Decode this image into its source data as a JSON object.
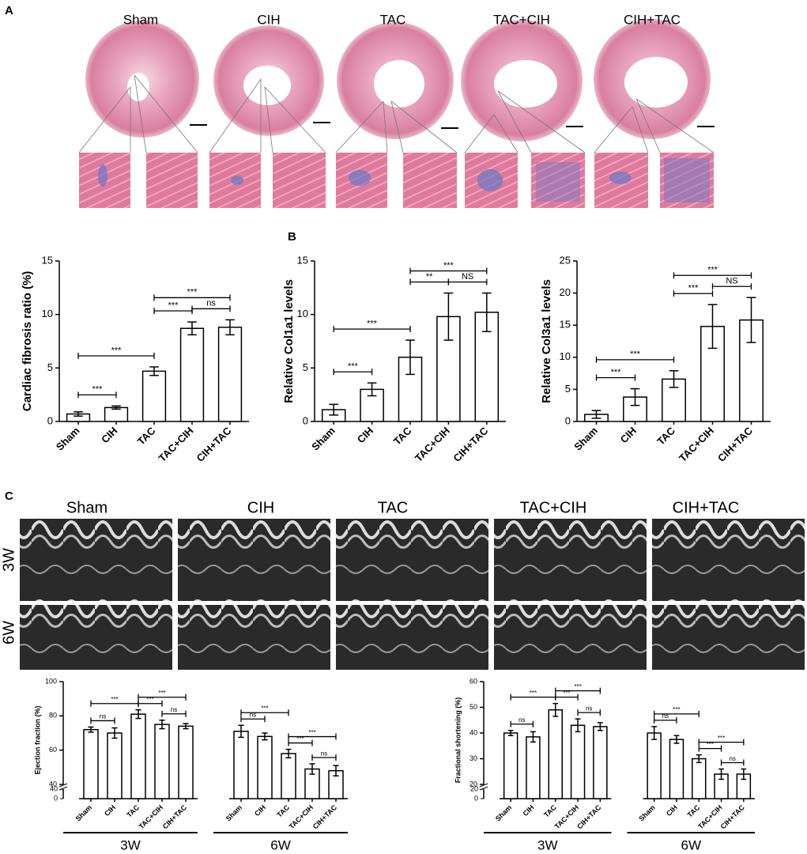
{
  "panel_a": {
    "label": "A",
    "groups": [
      "Sham",
      "CIH",
      "TAC",
      "TAC+CIH",
      "CIH+TAC"
    ]
  },
  "panel_b": {
    "label": "B"
  },
  "panel_c": {
    "label": "C",
    "groups": [
      "Sham",
      "CIH",
      "TAC",
      "TAC+CIH",
      "CIH+TAC"
    ],
    "rows": [
      "3W",
      "6W"
    ]
  },
  "chart_data": [
    {
      "type": "bar",
      "y_label": "Cardiac fibrosis ratio (%)",
      "categories": [
        "Sham",
        "CIH",
        "TAC",
        "TAC+CIH",
        "CIH+TAC"
      ],
      "values": [
        0.7,
        1.3,
        4.7,
        8.7,
        8.8
      ],
      "errors": [
        0.2,
        0.15,
        0.4,
        0.6,
        0.7
      ],
      "ylim": [
        0,
        15
      ],
      "yticks": [
        0,
        5,
        10,
        15
      ],
      "comparisons": [
        {
          "from": "Sham",
          "to": "CIH",
          "label": "***"
        },
        {
          "from": "Sham",
          "to": "TAC",
          "label": "***"
        },
        {
          "from": "TAC",
          "to": "TAC+CIH",
          "label": "***"
        },
        {
          "from": "TAC+CIH",
          "to": "CIH+TAC",
          "label": "ns"
        },
        {
          "from": "TAC",
          "to": "CIH+TAC",
          "label": "***"
        }
      ]
    },
    {
      "type": "bar",
      "y_label": "Relative Col1a1 levels",
      "categories": [
        "Sham",
        "CIH",
        "TAC",
        "TAC+CIH",
        "CIH+TAC"
      ],
      "values": [
        1.1,
        3.0,
        6.0,
        9.8,
        10.2
      ],
      "errors": [
        0.5,
        0.6,
        1.6,
        2.2,
        1.8
      ],
      "ylim": [
        0,
        15
      ],
      "yticks": [
        0,
        5,
        10,
        15
      ],
      "comparisons": [
        {
          "from": "Sham",
          "to": "CIH",
          "label": "***"
        },
        {
          "from": "Sham",
          "to": "TAC",
          "label": "***"
        },
        {
          "from": "TAC",
          "to": "TAC+CIH",
          "label": "**"
        },
        {
          "from": "TAC+CIH",
          "to": "CIH+TAC",
          "label": "NS"
        },
        {
          "from": "TAC",
          "to": "CIH+TAC",
          "label": "***"
        }
      ]
    },
    {
      "type": "bar",
      "y_label": "Relative Col3a1 levels",
      "categories": [
        "Sham",
        "CIH",
        "TAC",
        "TAC+CIH",
        "CIH+TAC"
      ],
      "values": [
        1.1,
        3.8,
        6.6,
        14.8,
        15.8
      ],
      "errors": [
        0.6,
        1.3,
        1.3,
        3.4,
        3.5
      ],
      "ylim": [
        0,
        25
      ],
      "yticks": [
        0,
        5,
        10,
        15,
        20,
        25
      ],
      "comparisons": [
        {
          "from": "Sham",
          "to": "CIH",
          "label": "***"
        },
        {
          "from": "Sham",
          "to": "TAC",
          "label": "***"
        },
        {
          "from": "TAC",
          "to": "TAC+CIH",
          "label": "***"
        },
        {
          "from": "TAC+CIH",
          "to": "CIH+TAC",
          "label": "NS"
        },
        {
          "from": "TAC",
          "to": "CIH+TAC",
          "label": "***"
        }
      ]
    },
    {
      "type": "bar",
      "y_label": "Ejection fraction (%)",
      "categories": [
        "Sham",
        "CIH",
        "TAC",
        "TAC+CIH",
        "CIH+TAC"
      ],
      "ylim": [
        40,
        100
      ],
      "yticks": [
        40,
        60,
        80,
        100
      ],
      "break_ylim": [
        0,
        40
      ],
      "break_yticks": [
        0,
        40
      ],
      "groups": [
        {
          "name": "3W",
          "values": [
            72,
            70,
            81,
            75,
            74
          ],
          "errors": [
            1.5,
            3,
            2.5,
            2.5,
            1.5
          ],
          "comparisons": [
            {
              "from": "Sham",
              "to": "CIH",
              "label": "ns"
            },
            {
              "from": "Sham",
              "to": "TAC",
              "label": "***"
            },
            {
              "from": "TAC",
              "to": "TAC+CIH",
              "label": "***"
            },
            {
              "from": "TAC+CIH",
              "to": "CIH+TAC",
              "label": "ns"
            },
            {
              "from": "TAC",
              "to": "CIH+TAC",
              "label": "***"
            }
          ]
        },
        {
          "name": "6W",
          "values": [
            71,
            68,
            58,
            49,
            48
          ],
          "errors": [
            3.5,
            2,
            2.5,
            3,
            3
          ],
          "comparisons": [
            {
              "from": "Sham",
              "to": "CIH",
              "label": "ns"
            },
            {
              "from": "Sham",
              "to": "TAC",
              "label": "***"
            },
            {
              "from": "TAC",
              "to": "TAC+CIH",
              "label": "***"
            },
            {
              "from": "TAC+CIH",
              "to": "CIH+TAC",
              "label": "ns"
            },
            {
              "from": "TAC",
              "to": "CIH+TAC",
              "label": "***"
            }
          ]
        }
      ]
    },
    {
      "type": "bar",
      "y_label": "Fractional shortening (%)",
      "categories": [
        "Sham",
        "CIH",
        "TAC",
        "TAC+CIH",
        "CIH+TAC"
      ],
      "ylim": [
        20,
        60
      ],
      "yticks": [
        20,
        30,
        40,
        50,
        60
      ],
      "break_ylim": [
        0,
        20
      ],
      "break_yticks": [
        0,
        20
      ],
      "groups": [
        {
          "name": "3W",
          "values": [
            40,
            38.5,
            49,
            43,
            42.5
          ],
          "errors": [
            1,
            2,
            2.5,
            2.5,
            1.5
          ],
          "comparisons": [
            {
              "from": "Sham",
              "to": "CIH",
              "label": "ns"
            },
            {
              "from": "Sham",
              "to": "TAC",
              "label": "***"
            },
            {
              "from": "TAC",
              "to": "TAC+CIH",
              "label": "***"
            },
            {
              "from": "TAC+CIH",
              "to": "CIH+TAC",
              "label": "ns"
            },
            {
              "from": "TAC",
              "to": "CIH+TAC",
              "label": "***"
            }
          ]
        },
        {
          "name": "6W",
          "values": [
            40,
            37.5,
            30,
            24,
            24
          ],
          "errors": [
            2.5,
            1.5,
            1.5,
            2,
            2
          ],
          "comparisons": [
            {
              "from": "Sham",
              "to": "CIH",
              "label": "ns"
            },
            {
              "from": "Sham",
              "to": "TAC",
              "label": "***"
            },
            {
              "from": "TAC",
              "to": "TAC+CIH",
              "label": "***"
            },
            {
              "from": "TAC+CIH",
              "to": "CIH+TAC",
              "label": "ns"
            },
            {
              "from": "TAC",
              "to": "CIH+TAC",
              "label": "***"
            }
          ]
        }
      ]
    }
  ]
}
